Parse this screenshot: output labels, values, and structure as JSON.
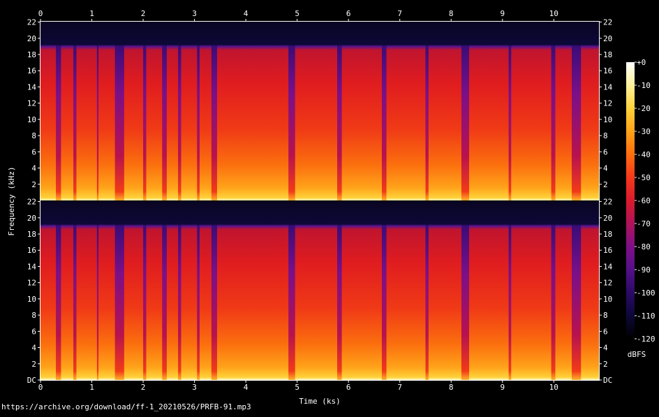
{
  "chart_data": {
    "type": "heatmap",
    "title": "",
    "xlabel": "Time (ks)",
    "ylabel": "Frequency (kHz)",
    "x_ticks": [
      "0",
      "1",
      "2",
      "3",
      "4",
      "5",
      "6",
      "7",
      "8",
      "9",
      "10"
    ],
    "xlim": [
      0,
      10.88
    ],
    "channels": [
      {
        "name": "",
        "y_ticks": [
          "2",
          "4",
          "6",
          "8",
          "10",
          "12",
          "14",
          "16",
          "18",
          "20",
          "22"
        ],
        "ylim": [
          0,
          22.05
        ]
      },
      {
        "name": "",
        "y_ticks": [
          "DC",
          "2",
          "4",
          "6",
          "8",
          "10",
          "12",
          "14",
          "16",
          "18",
          "20",
          "22"
        ],
        "ylim": [
          0,
          22.05
        ]
      }
    ],
    "lowpass_cutoff_khz": 19,
    "colorbar": {
      "label": "dBFS",
      "ticks": [
        "+0",
        "-10",
        "-20",
        "-30",
        "-40",
        "-50",
        "-60",
        "-70",
        "-80",
        "-90",
        "-100",
        "-110",
        "-120"
      ],
      "range": [
        -120,
        0
      ],
      "colors": [
        "#000000",
        "#0d0838",
        "#2a0a66",
        "#55108a",
        "#7f0f88",
        "#b0125a",
        "#db1a2c",
        "#f5381a",
        "#ff6e0d",
        "#ffa317",
        "#ffd23a",
        "#fff29a",
        "#ffffff"
      ]
    },
    "quiet_segments_ks": [
      [
        0.3,
        0.4
      ],
      [
        0.64,
        0.7
      ],
      [
        1.1,
        1.13
      ],
      [
        1.45,
        1.63
      ],
      [
        2.0,
        2.06
      ],
      [
        2.37,
        2.46
      ],
      [
        2.68,
        2.74
      ],
      [
        3.05,
        3.1
      ],
      [
        3.33,
        3.44
      ],
      [
        4.83,
        4.96
      ],
      [
        5.78,
        5.87
      ],
      [
        6.65,
        6.74
      ],
      [
        7.5,
        7.56
      ],
      [
        8.2,
        8.35
      ],
      [
        9.12,
        9.17
      ],
      [
        9.95,
        10.03
      ],
      [
        10.35,
        10.53
      ]
    ]
  },
  "footer": {
    "source_url": "https://archive.org/download/ff-1_20210526/PRFB-91.mp3"
  }
}
